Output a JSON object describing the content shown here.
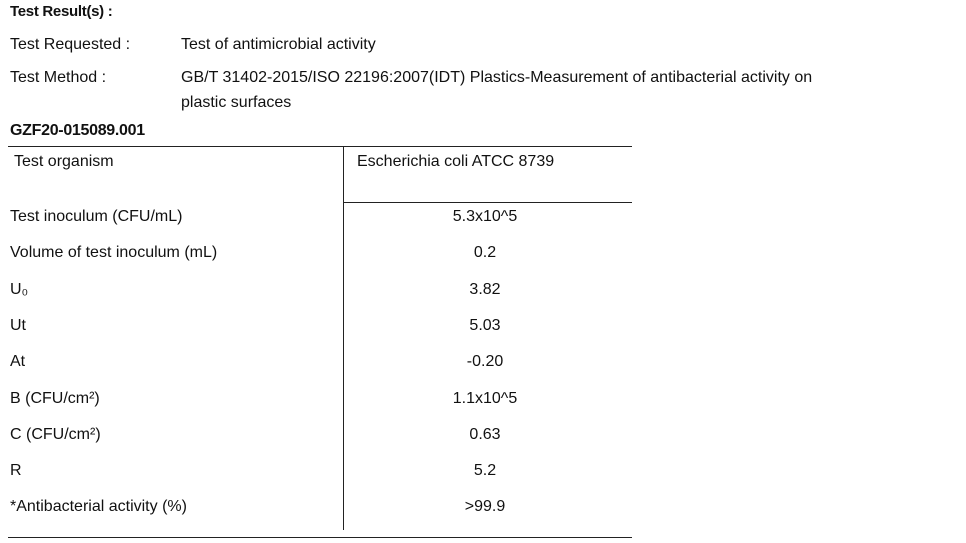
{
  "header": {
    "title": "Test Result(s) :"
  },
  "info": [
    {
      "label": "Test Requested :",
      "lines": [
        "Test of antimicrobial activity"
      ]
    },
    {
      "label": "Test Method :",
      "lines": [
        "GB/T 31402-2015/ISO 22196:2007(IDT) Plastics-Measurement of antibacterial activity on",
        "plastic surfaces"
      ]
    }
  ],
  "sample_id": "GZF20-015089.001",
  "table": {
    "header": [
      "Test organism",
      "Escherichia coli  ATCC 8739"
    ],
    "rows": [
      [
        "Test inoculum (CFU/mL)",
        "5.3x10^5"
      ],
      [
        "Volume of test inoculum (mL)",
        "0.2"
      ],
      [
        "U₀",
        "3.82"
      ],
      [
        "Ut",
        "5.03"
      ],
      [
        "At",
        "-0.20"
      ],
      [
        "B (CFU/cm²)",
        "1.1x10^5"
      ],
      [
        "C (CFU/cm²)",
        "0.63"
      ],
      [
        "R",
        "5.2"
      ],
      [
        "*Antibacterial activity (%)",
        ">99.9"
      ]
    ]
  }
}
